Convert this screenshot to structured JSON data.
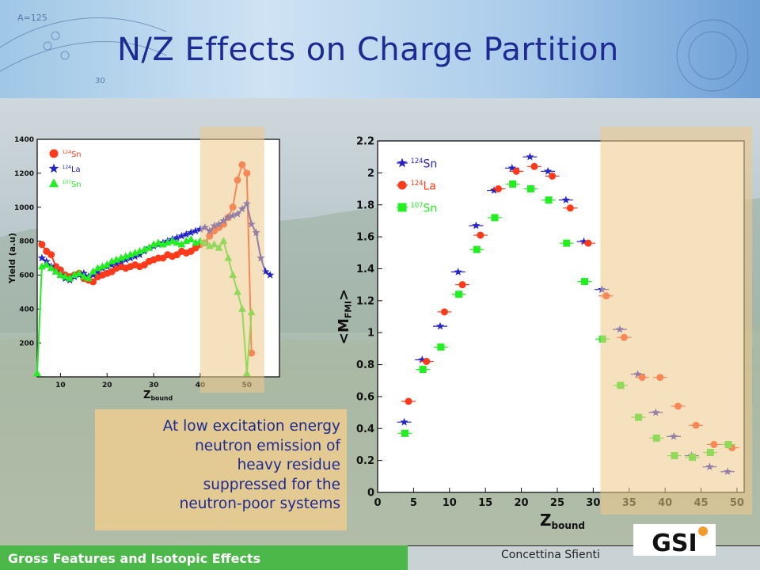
{
  "slide": {
    "title": "N/Z Effects on Charge Partition",
    "note_lines": [
      "At low excitation energy",
      "neutron emission of",
      "heavy residue",
      "suppressed for the",
      "neutron-poor systems"
    ],
    "footer": "Gross Features and Isotopic Effects",
    "author": "Concettina Sfienti",
    "logo_text": "GSI",
    "header_marks": [
      "A=125",
      "30"
    ]
  },
  "colors": {
    "title": "#1e2a93",
    "footer_bar": "#4cb84a",
    "highlight": "#efc98a",
    "red": "#ff3a1a",
    "blue": "#2424c8",
    "green": "#22ee22"
  },
  "chart_data": [
    {
      "type": "line",
      "ylabel": "Yield (a.u)",
      "xlabel_main": "Z",
      "xlabel_sub": "bound",
      "xlim": [
        5,
        57
      ],
      "ylim": [
        0,
        1400
      ],
      "xticks": [
        10,
        20,
        30,
        40,
        50
      ],
      "yticks": [
        200,
        400,
        600,
        800,
        1000,
        1200,
        1400
      ],
      "highlight_x": [
        40,
        50
      ],
      "legend": [
        "top-left"
      ],
      "series": [
        {
          "name": "Sn",
          "mass": "124",
          "color": "#ff3a1a",
          "marker": "circle",
          "x": [
            6,
            7,
            8,
            9,
            10,
            11,
            12,
            13,
            14,
            15,
            16,
            17,
            18,
            19,
            20,
            21,
            22,
            23,
            24,
            25,
            26,
            27,
            28,
            29,
            30,
            31,
            32,
            33,
            34,
            35,
            36,
            37,
            38,
            39,
            40,
            41,
            42,
            43,
            44,
            45,
            46,
            47,
            48,
            49,
            50,
            51
          ],
          "y": [
            780,
            740,
            720,
            650,
            630,
            600,
            590,
            600,
            610,
            580,
            570,
            560,
            590,
            600,
            610,
            620,
            640,
            650,
            640,
            650,
            660,
            650,
            660,
            680,
            690,
            700,
            700,
            720,
            710,
            720,
            740,
            730,
            740,
            760,
            780,
            790,
            830,
            860,
            880,
            900,
            940,
            1000,
            1160,
            1250,
            1200,
            140
          ]
        },
        {
          "name": "La",
          "mass": "124",
          "color": "#2424c8",
          "marker": "star",
          "x": [
            6,
            7,
            8,
            9,
            10,
            11,
            12,
            13,
            14,
            15,
            16,
            17,
            18,
            19,
            20,
            21,
            22,
            23,
            24,
            25,
            26,
            27,
            28,
            29,
            30,
            31,
            32,
            33,
            34,
            35,
            36,
            37,
            38,
            39,
            40,
            41,
            42,
            43,
            44,
            45,
            46,
            47,
            48,
            49,
            50,
            51,
            52,
            53,
            54,
            55
          ],
          "y": [
            700,
            680,
            650,
            620,
            600,
            580,
            570,
            590,
            600,
            610,
            590,
            600,
            620,
            640,
            650,
            660,
            670,
            680,
            690,
            700,
            710,
            720,
            740,
            760,
            770,
            780,
            790,
            800,
            810,
            820,
            830,
            840,
            850,
            860,
            870,
            880,
            860,
            890,
            900,
            920,
            940,
            950,
            960,
            990,
            1020,
            900,
            850,
            700,
            620,
            600
          ]
        },
        {
          "name": "Sn",
          "mass": "107",
          "color": "#22ee22",
          "marker": "triangle",
          "x": [
            5,
            6,
            7,
            8,
            9,
            10,
            11,
            12,
            13,
            14,
            15,
            16,
            17,
            18,
            19,
            20,
            21,
            22,
            23,
            24,
            25,
            26,
            27,
            28,
            29,
            30,
            31,
            32,
            33,
            34,
            35,
            36,
            37,
            38,
            39,
            40,
            41,
            42,
            43,
            44,
            45,
            46,
            47,
            48,
            49,
            50,
            51
          ],
          "y": [
            20,
            650,
            660,
            640,
            620,
            600,
            590,
            580,
            600,
            610,
            590,
            580,
            620,
            640,
            650,
            660,
            680,
            690,
            700,
            710,
            720,
            730,
            740,
            750,
            760,
            780,
            790,
            780,
            790,
            800,
            790,
            780,
            800,
            810,
            790,
            800,
            790,
            770,
            780,
            760,
            800,
            700,
            600,
            500,
            400,
            20,
            380
          ]
        }
      ]
    },
    {
      "type": "scatter",
      "ylabel": "<M",
      "ylabel_sub": "FMI",
      "ylabel_end": ">",
      "xlabel_main": "Z",
      "xlabel_sub": "bound",
      "xlim": [
        0,
        51
      ],
      "ylim": [
        0,
        2.2
      ],
      "xticks": [
        0,
        5,
        10,
        15,
        20,
        25,
        30,
        35,
        40,
        45,
        50
      ],
      "yticks": [
        0,
        0.2,
        0.4,
        0.6,
        0.8,
        1,
        1.2,
        1.4,
        1.6,
        1.8,
        2,
        2.2
      ],
      "highlight_x": [
        31,
        51
      ],
      "legend": [
        "top-left"
      ],
      "series": [
        {
          "name": "Sn",
          "mass": "124",
          "color": "#2424c8",
          "marker": "star",
          "x": [
            3.7,
            6.2,
            8.7,
            11.2,
            13.7,
            16.2,
            18.7,
            21.2,
            23.7,
            26.2,
            28.7,
            31.2,
            33.7,
            36.2,
            38.7,
            41.2,
            43.7,
            46.2,
            48.7
          ],
          "y": [
            0.44,
            0.83,
            1.04,
            1.38,
            1.67,
            1.89,
            2.03,
            2.1,
            2.01,
            1.83,
            1.57,
            1.27,
            1.02,
            0.74,
            0.5,
            0.35,
            0.23,
            0.16,
            0.13
          ]
        },
        {
          "name": "La",
          "mass": "124",
          "color": "#ff3a1a",
          "marker": "circle",
          "x": [
            4.3,
            6.8,
            9.3,
            11.8,
            14.3,
            16.8,
            19.3,
            21.8,
            24.3,
            26.8,
            29.3,
            31.8,
            34.3,
            36.8,
            39.3,
            41.8,
            44.3,
            46.8,
            49.3
          ],
          "y": [
            0.57,
            0.82,
            1.13,
            1.3,
            1.61,
            1.9,
            2.01,
            2.04,
            1.98,
            1.78,
            1.56,
            1.23,
            0.97,
            0.72,
            0.72,
            0.54,
            0.42,
            0.3,
            0.28
          ]
        },
        {
          "name": "Sn",
          "mass": "107",
          "color": "#22ee22",
          "marker": "square",
          "x": [
            3.8,
            6.3,
            8.8,
            11.3,
            13.8,
            16.3,
            18.8,
            21.3,
            23.8,
            26.3,
            28.8,
            31.3,
            33.8,
            36.3,
            38.8,
            41.3,
            43.8,
            46.3,
            48.8
          ],
          "y": [
            0.37,
            0.77,
            0.91,
            1.24,
            1.52,
            1.72,
            1.93,
            1.9,
            1.83,
            1.56,
            1.32,
            0.96,
            0.67,
            0.47,
            0.34,
            0.23,
            0.22,
            0.25,
            0.3
          ]
        }
      ]
    }
  ]
}
